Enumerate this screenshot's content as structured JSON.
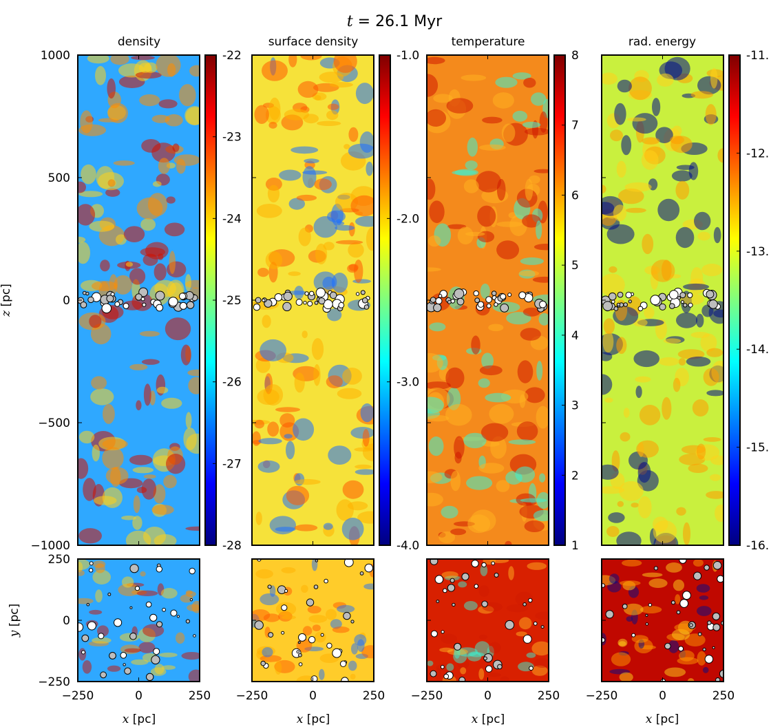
{
  "figure": {
    "title_var": "t",
    "title_value": " = 26.1 Myr",
    "panel_titles": [
      "density",
      "surface density",
      "temperature",
      "rad. energy"
    ]
  },
  "colormap": [
    "#00007f",
    "#0000ff",
    "#007fff",
    "#00ffff",
    "#7fff7f",
    "#ffff00",
    "#ff7f00",
    "#ff0000",
    "#7f0000"
  ],
  "chart_data": [
    {
      "type": "heatmap",
      "title": "density",
      "xlabel": "",
      "ylabel": "z [pc]",
      "xlim": [
        -250,
        250
      ],
      "ylim": [
        -1000,
        1000
      ],
      "xticks": [
        -250,
        0,
        250
      ],
      "yticks": [
        1000,
        500,
        0,
        -500,
        -1000
      ],
      "ytick_labels": [
        "1000",
        "500",
        "0",
        "−500",
        "−1000"
      ],
      "colorbar": {
        "range": [
          -28,
          -22
        ],
        "ticks": [
          -22,
          -23,
          -24,
          -25,
          -26,
          -27,
          -28
        ],
        "tick_labels": [
          "-22",
          "-23",
          "-24",
          "-25",
          "-26",
          "-27",
          "-28"
        ]
      },
      "background": "#2fa8ff",
      "structure_colors": [
        "#ff8c00",
        "#d01000",
        "#ffd21a"
      ]
    },
    {
      "type": "heatmap",
      "title": "surface density",
      "xlim": [
        -250,
        250
      ],
      "ylim": [
        -1000,
        1000
      ],
      "colorbar": {
        "range": [
          -4.0,
          -1.0
        ],
        "ticks": [
          -1.0,
          -2.0,
          -3.0,
          -4.0
        ],
        "tick_labels": [
          "-1.0",
          "-2.0",
          "-3.0",
          "-4.0"
        ]
      },
      "background": "#f6e23a",
      "structure_colors": [
        "#ff5a00",
        "#1d6fff",
        "#ffb000"
      ]
    },
    {
      "type": "heatmap",
      "title": "temperature",
      "xlim": [
        -250,
        250
      ],
      "ylim": [
        -1000,
        1000
      ],
      "colorbar": {
        "range": [
          1,
          8
        ],
        "ticks": [
          8,
          7,
          6,
          5,
          4,
          3,
          2,
          1
        ],
        "tick_labels": [
          "8",
          "7",
          "6",
          "5",
          "4",
          "3",
          "2",
          "1"
        ]
      },
      "background": "#f48a1c",
      "structure_colors": [
        "#3af2d2",
        "#d01a00",
        "#ffb020"
      ]
    },
    {
      "type": "heatmap",
      "title": "rad. energy",
      "xlim": [
        -250,
        250
      ],
      "ylim": [
        -1000,
        1000
      ],
      "colorbar": {
        "range": [
          -16,
          -11
        ],
        "ticks": [
          -11,
          -12,
          -13,
          -14,
          -15,
          -16
        ],
        "tick_labels": [
          "-11.",
          "-12.",
          "-13.",
          "-14.",
          "-15.",
          "-16."
        ]
      },
      "background": "#c9f03e",
      "structure_colors": [
        "#000c8a",
        "#ff9a00",
        "#ffd21a"
      ]
    }
  ],
  "projections": {
    "ylabel": "y [pc]",
    "xlabel": "x [pc]",
    "xlim": [
      -250,
      250
    ],
    "ylim": [
      -250,
      250
    ],
    "xticks": [
      -250,
      0,
      250
    ],
    "xtick_labels": [
      "−250",
      "0",
      "250"
    ],
    "yticks": [
      250,
      0,
      -250
    ],
    "ytick_labels": [
      "250",
      "0",
      "−250"
    ],
    "backgrounds": [
      "#2fa8ff",
      "#ffcc2a",
      "#d82000",
      "#c00800"
    ]
  }
}
